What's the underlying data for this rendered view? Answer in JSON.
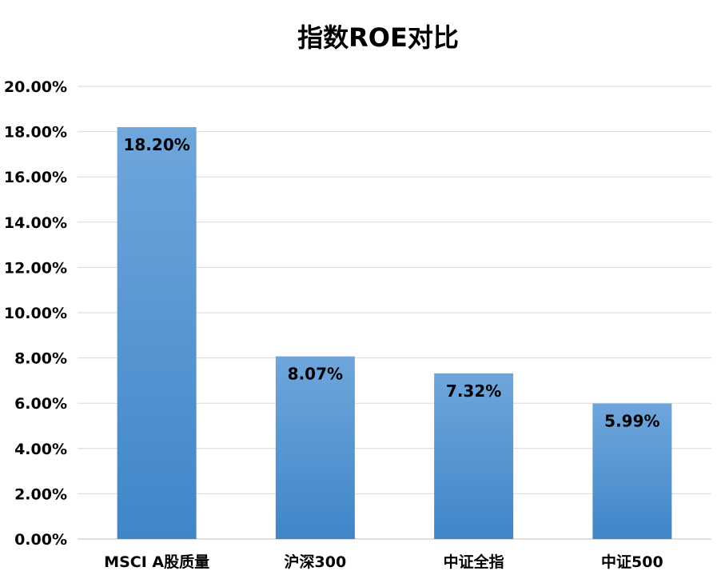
{
  "chart_data": {
    "type": "bar",
    "title": "指数ROE对比",
    "categories": [
      "MSCI A股质量",
      "沪深300",
      "中证全指",
      "中证500"
    ],
    "values": [
      18.2,
      8.07,
      7.32,
      5.99
    ],
    "data_labels": [
      "18.20%",
      "8.07%",
      "7.32%",
      "5.99%"
    ],
    "ylim": [
      0,
      20
    ],
    "yticks": [
      0,
      2,
      4,
      6,
      8,
      10,
      12,
      14,
      16,
      18,
      20
    ],
    "ytick_labels": [
      "0.00%",
      "2.00%",
      "4.00%",
      "6.00%",
      "8.00%",
      "10.00%",
      "12.00%",
      "14.00%",
      "16.00%",
      "18.00%",
      "20.00%"
    ],
    "xlabel": "",
    "ylabel": "",
    "grid": true,
    "legend": "none",
    "bar_color_top": "#6fa6dc",
    "bar_color_bottom": "#3f86c8"
  }
}
